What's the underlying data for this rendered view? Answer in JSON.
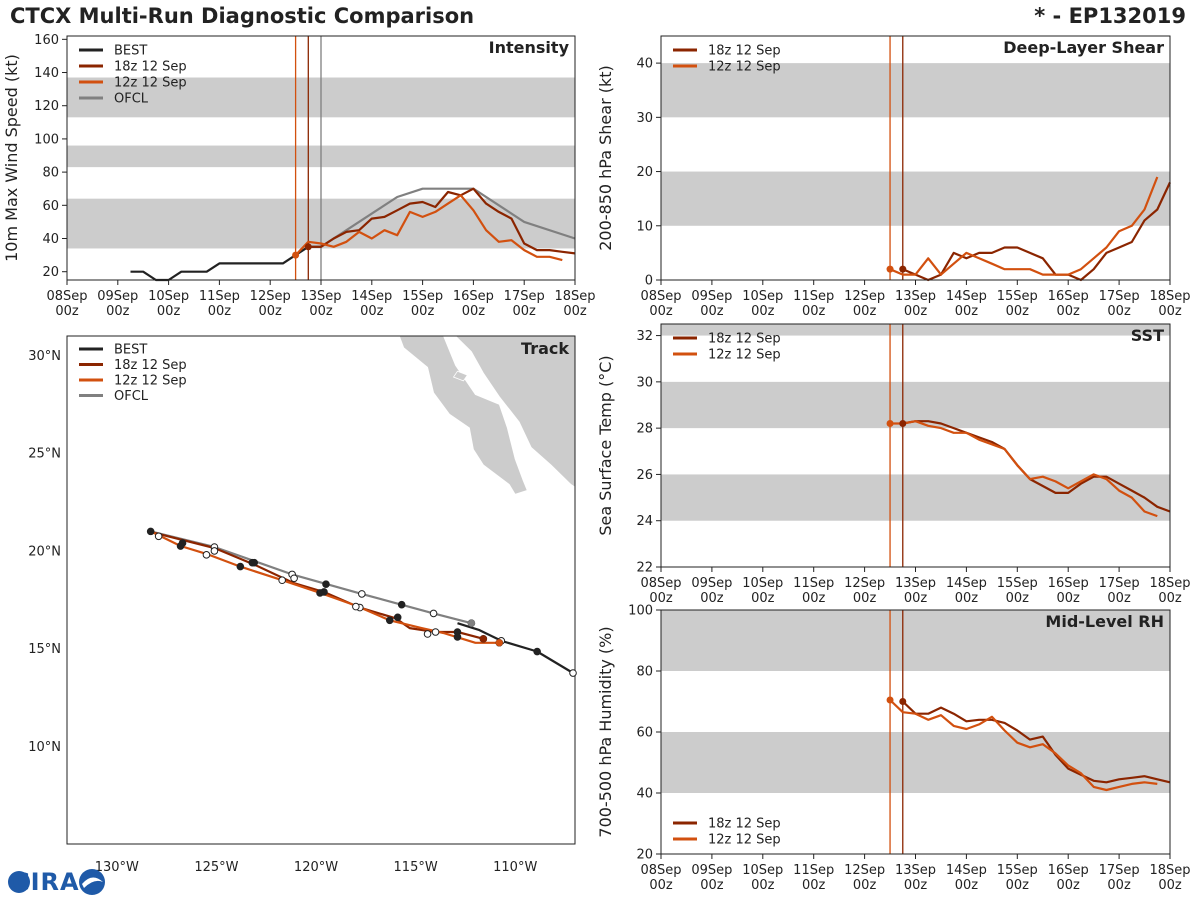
{
  "figure_title": "CTCX Multi-Run Diagnostic Comparison",
  "storm_id": "* - EP132019",
  "colors": {
    "BEST": "#222222",
    "18z 12 Sep": "#8b2500",
    "12z 12 Sep": "#d2500f",
    "OFCL": "#808080",
    "band": "#cccccc"
  },
  "chart_data": [
    {
      "id": "intensity",
      "type": "line",
      "title": "Intensity",
      "ylabel": "10m Max Wind Speed (kt)",
      "x_unit": "days since 08Sep 00z",
      "xlim": [
        0,
        10
      ],
      "ylim": [
        15,
        162
      ],
      "yticks": [
        20,
        40,
        60,
        80,
        100,
        120,
        140,
        160
      ],
      "xticks": [
        {
          "d": 0,
          "label": "08Sep\n00z"
        },
        {
          "d": 1,
          "label": "09Sep\n00z"
        },
        {
          "d": 2,
          "label": "10Sep\n00z"
        },
        {
          "d": 3,
          "label": "11Sep\n00z"
        },
        {
          "d": 4,
          "label": "12Sep\n00z"
        },
        {
          "d": 5,
          "label": "13Sep\n00z"
        },
        {
          "d": 6,
          "label": "14Sep\n00z"
        },
        {
          "d": 7,
          "label": "15Sep\n00z"
        },
        {
          "d": 8,
          "label": "16Sep\n00z"
        },
        {
          "d": 9,
          "label": "17Sep\n00z"
        },
        {
          "d": 10,
          "label": "18Sep\n00z"
        }
      ],
      "bands": [
        [
          34,
          64
        ],
        [
          83,
          96
        ],
        [
          113,
          137
        ]
      ],
      "vlines": [
        {
          "x": 4.5,
          "color": "#d2500f"
        },
        {
          "x": 4.75,
          "color": "#8b2500"
        },
        {
          "x": 5.0,
          "color": "#808080"
        }
      ],
      "legend": [
        "BEST",
        "18z 12 Sep",
        "12z 12 Sep",
        "OFCL"
      ],
      "series": [
        {
          "name": "BEST",
          "x": [
            1.25,
            1.5,
            1.75,
            2.0,
            2.25,
            2.5,
            2.75,
            3.0,
            3.25,
            3.5,
            3.75,
            4.0,
            4.25,
            4.5,
            4.75,
            5.0
          ],
          "y": [
            20,
            20,
            15,
            15,
            20,
            20,
            20,
            25,
            25,
            25,
            25,
            25,
            25,
            30,
            35,
            35
          ]
        },
        {
          "name": "OFCL",
          "x": [
            5.0,
            5.5,
            6.0,
            6.5,
            7.0,
            7.5,
            8.0,
            9.0,
            10.0
          ],
          "y": [
            35,
            45,
            55,
            65,
            70,
            70,
            70,
            50,
            40
          ]
        },
        {
          "name": "18z 12 Sep",
          "x": [
            4.75,
            5.0,
            5.25,
            5.5,
            5.75,
            6.0,
            6.25,
            6.5,
            6.75,
            7.0,
            7.25,
            7.5,
            7.75,
            8.0,
            8.25,
            8.5,
            8.75,
            9.0,
            9.25,
            9.5,
            9.75,
            10.0
          ],
          "y": [
            35,
            35,
            40,
            44,
            45,
            52,
            53,
            57,
            61,
            62,
            59,
            68,
            66,
            70,
            61,
            56,
            52,
            37,
            33,
            33,
            32,
            31
          ]
        },
        {
          "name": "12z 12 Sep",
          "x": [
            4.5,
            4.75,
            5.0,
            5.25,
            5.5,
            5.75,
            6.0,
            6.25,
            6.5,
            6.75,
            7.0,
            7.25,
            7.5,
            7.75,
            8.0,
            8.25,
            8.5,
            8.75,
            9.0,
            9.25,
            9.5,
            9.75
          ],
          "y": [
            30,
            38,
            37,
            35,
            38,
            44,
            40,
            45,
            42,
            56,
            53,
            56,
            61,
            66,
            57,
            45,
            38,
            39,
            33,
            29,
            29,
            27
          ]
        }
      ],
      "markers": [
        {
          "name": "12z 12 Sep",
          "x": 4.5,
          "y": 30
        },
        {
          "name": "18z 12 Sep",
          "x": 4.75,
          "y": 35
        }
      ]
    },
    {
      "id": "shear",
      "type": "line",
      "title": "Deep-Layer Shear",
      "ylabel": "200-850 hPa Shear (kt)",
      "xlim": [
        0,
        10
      ],
      "ylim": [
        0,
        45
      ],
      "yticks": [
        0,
        10,
        20,
        30,
        40
      ],
      "bands": [
        [
          10,
          20
        ],
        [
          30,
          40
        ]
      ],
      "vlines": [
        {
          "x": 4.5,
          "color": "#d2500f"
        },
        {
          "x": 4.75,
          "color": "#8b2500"
        }
      ],
      "legend": [
        "18z 12 Sep",
        "12z 12 Sep"
      ],
      "series": [
        {
          "name": "18z 12 Sep",
          "x": [
            4.75,
            5.0,
            5.25,
            5.5,
            5.75,
            6.0,
            6.25,
            6.5,
            6.75,
            7.0,
            7.25,
            7.5,
            7.75,
            8.0,
            8.25,
            8.5,
            8.75,
            9.0,
            9.25,
            9.5,
            9.75,
            10.0
          ],
          "y": [
            2,
            1,
            0,
            1,
            5,
            4,
            5,
            5,
            6,
            6,
            5,
            4,
            1,
            1,
            0,
            2,
            5,
            6,
            7,
            11,
            13,
            18
          ]
        },
        {
          "name": "12z 12 Sep",
          "x": [
            4.5,
            4.75,
            5.0,
            5.25,
            5.5,
            5.75,
            6.0,
            6.25,
            6.5,
            6.75,
            7.0,
            7.25,
            7.5,
            7.75,
            8.0,
            8.25,
            8.5,
            8.75,
            9.0,
            9.25,
            9.5,
            9.75
          ],
          "y": [
            2,
            1,
            1,
            4,
            1,
            3,
            5,
            4,
            3,
            2,
            2,
            2,
            1,
            1,
            1,
            2,
            4,
            6,
            9,
            10,
            13,
            19
          ]
        }
      ],
      "markers": [
        {
          "name": "12z 12 Sep",
          "x": 4.5,
          "y": 2
        },
        {
          "name": "18z 12 Sep",
          "x": 4.75,
          "y": 2
        }
      ]
    },
    {
      "id": "track",
      "type": "map",
      "title": "Track",
      "lon_range": [
        -132.5,
        -107
      ],
      "lat_range": [
        5,
        31
      ],
      "xticks": [
        {
          "v": -130,
          "label": "130°W"
        },
        {
          "v": -125,
          "label": "125°W"
        },
        {
          "v": -120,
          "label": "120°W"
        },
        {
          "v": -115,
          "label": "115°W"
        },
        {
          "v": -110,
          "label": "110°W"
        }
      ],
      "yticks": [
        {
          "v": 30,
          "label": "30°N"
        },
        {
          "v": 25,
          "label": "25°N"
        },
        {
          "v": 20,
          "label": "20°N"
        },
        {
          "v": 15,
          "label": "15°N"
        },
        {
          "v": 10,
          "label": "10°N"
        }
      ],
      "legend": [
        "BEST",
        "18z 12 Sep",
        "12z 12 Sep",
        "OFCL"
      ],
      "series": [
        {
          "name": "BEST",
          "lon": [
            -107.1,
            -108.9,
            -110.7,
            -111.8,
            -112.9
          ],
          "lat": [
            13.75,
            14.85,
            15.4,
            15.95,
            16.3
          ],
          "markers": [
            {
              "lon": -107.1,
              "lat": 13.75,
              "open": true
            },
            {
              "lon": -108.9,
              "lat": 14.85,
              "open": false
            },
            {
              "lon": -110.7,
              "lat": 15.4,
              "open": true
            }
          ]
        },
        {
          "name": "OFCL",
          "lon": [
            -112.2,
            -114.1,
            -117.7,
            -121.2,
            -125.1,
            -128.3
          ],
          "lat": [
            16.3,
            16.8,
            17.8,
            18.8,
            20.2,
            21.0
          ],
          "markers": [
            {
              "lon": -112.2,
              "lat": 16.3,
              "open": false
            },
            {
              "lon": -114.1,
              "lat": 16.8,
              "open": true
            },
            {
              "lon": -115.7,
              "lat": 17.25,
              "open": false
            },
            {
              "lon": -117.7,
              "lat": 17.8,
              "open": true
            },
            {
              "lon": -119.5,
              "lat": 18.3,
              "open": false
            },
            {
              "lon": -121.2,
              "lat": 18.8,
              "open": true
            },
            {
              "lon": -123.2,
              "lat": 19.4,
              "open": false
            },
            {
              "lon": -125.1,
              "lat": 20.2,
              "open": true
            },
            {
              "lon": -126.7,
              "lat": 20.4,
              "open": false
            },
            {
              "lon": -128.3,
              "lat": 21.0,
              "open": false
            }
          ]
        },
        {
          "name": "18z 12 Sep",
          "lon": [
            -111.6,
            -112.9,
            -114.0,
            -115.3,
            -116.0,
            -117.8,
            -119.6,
            -121.1,
            -123.1,
            -125.1,
            -128.2
          ],
          "lat": [
            15.5,
            15.85,
            15.85,
            16.05,
            16.55,
            17.1,
            17.9,
            18.35,
            19.3,
            20.15,
            20.95
          ],
          "markers": [
            {
              "lon": -111.6,
              "lat": 15.5,
              "open": false
            },
            {
              "lon": -112.9,
              "lat": 15.85,
              "open": false
            },
            {
              "lon": -114.0,
              "lat": 15.85,
              "open": true
            },
            {
              "lon": -115.9,
              "lat": 16.6,
              "open": false
            },
            {
              "lon": -117.8,
              "lat": 17.1,
              "open": true
            },
            {
              "lon": -119.6,
              "lat": 17.9,
              "open": false
            },
            {
              "lon": -121.1,
              "lat": 18.6,
              "open": true
            },
            {
              "lon": -123.1,
              "lat": 19.4,
              "open": false
            },
            {
              "lon": -125.1,
              "lat": 20.0,
              "open": true
            },
            {
              "lon": -127.9,
              "lat": 20.75,
              "open": true
            }
          ]
        },
        {
          "name": "12z 12 Sep",
          "lon": [
            -110.8,
            -112.0,
            -113.6,
            -114.7,
            -116.3,
            -118.0,
            -119.8,
            -121.7,
            -123.8,
            -125.5,
            -126.8,
            -128.3
          ],
          "lat": [
            15.3,
            15.3,
            15.8,
            16.05,
            16.45,
            17.2,
            17.85,
            18.5,
            19.2,
            19.85,
            20.25,
            21.0
          ],
          "markers": [
            {
              "lon": -110.8,
              "lat": 15.3,
              "open": false
            },
            {
              "lon": -112.9,
              "lat": 15.6,
              "open": false
            },
            {
              "lon": -114.4,
              "lat": 15.75,
              "open": true
            },
            {
              "lon": -116.3,
              "lat": 16.45,
              "open": false
            },
            {
              "lon": -118.0,
              "lat": 17.15,
              "open": true
            },
            {
              "lon": -119.8,
              "lat": 17.85,
              "open": false
            },
            {
              "lon": -121.7,
              "lat": 18.5,
              "open": true
            },
            {
              "lon": -123.8,
              "lat": 19.2,
              "open": false
            },
            {
              "lon": -125.5,
              "lat": 19.8,
              "open": true
            },
            {
              "lon": -126.8,
              "lat": 20.25,
              "open": false
            }
          ]
        }
      ]
    },
    {
      "id": "sst",
      "type": "line",
      "title": "SST",
      "ylabel": "Sea Surface Temp (°C)",
      "xlim": [
        0,
        10
      ],
      "ylim": [
        22,
        32.5
      ],
      "yticks": [
        22,
        24,
        26,
        28,
        30,
        32
      ],
      "bands": [
        [
          24,
          26
        ],
        [
          28,
          30
        ],
        [
          32,
          32.5
        ]
      ],
      "vlines": [
        {
          "x": 4.5,
          "color": "#d2500f"
        },
        {
          "x": 4.75,
          "color": "#8b2500"
        }
      ],
      "legend": [
        "18z 12 Sep",
        "12z 12 Sep"
      ],
      "series": [
        {
          "name": "18z 12 Sep",
          "x": [
            4.75,
            5.0,
            5.25,
            5.5,
            5.75,
            6.0,
            6.25,
            6.5,
            6.75,
            7.0,
            7.25,
            7.5,
            7.75,
            8.0,
            8.25,
            8.5,
            8.75,
            9.0,
            9.25,
            9.5,
            9.75,
            10.0
          ],
          "y": [
            28.2,
            28.3,
            28.3,
            28.2,
            28.0,
            27.8,
            27.6,
            27.4,
            27.1,
            26.4,
            25.8,
            25.5,
            25.2,
            25.2,
            25.6,
            25.9,
            25.9,
            25.6,
            25.3,
            25.0,
            24.6,
            24.4
          ]
        },
        {
          "name": "12z 12 Sep",
          "x": [
            4.5,
            4.75,
            5.0,
            5.25,
            5.5,
            5.75,
            6.0,
            6.25,
            6.5,
            6.75,
            7.0,
            7.25,
            7.5,
            7.75,
            8.0,
            8.25,
            8.5,
            8.75,
            9.0,
            9.25,
            9.5,
            9.75
          ],
          "y": [
            28.2,
            28.2,
            28.3,
            28.1,
            28.0,
            27.8,
            27.8,
            27.5,
            27.3,
            27.1,
            26.4,
            25.8,
            25.9,
            25.7,
            25.4,
            25.7,
            26.0,
            25.8,
            25.3,
            25.0,
            24.4,
            24.2
          ]
        }
      ],
      "markers": [
        {
          "name": "12z 12 Sep",
          "x": 4.5,
          "y": 28.2
        },
        {
          "name": "18z 12 Sep",
          "x": 4.75,
          "y": 28.2
        }
      ]
    },
    {
      "id": "rh",
      "type": "line",
      "title": "Mid-Level RH",
      "ylabel": "700-500 hPa Humidity (%)",
      "xlim": [
        0,
        10
      ],
      "ylim": [
        20,
        100
      ],
      "yticks": [
        20,
        40,
        60,
        80,
        100
      ],
      "bands": [
        [
          40,
          60
        ],
        [
          80,
          100
        ]
      ],
      "vlines": [
        {
          "x": 4.5,
          "color": "#d2500f"
        },
        {
          "x": 4.75,
          "color": "#8b2500"
        }
      ],
      "legend": [
        "18z 12 Sep",
        "12z 12 Sep"
      ],
      "series": [
        {
          "name": "18z 12 Sep",
          "x": [
            4.75,
            5.0,
            5.25,
            5.5,
            5.75,
            6.0,
            6.25,
            6.5,
            6.75,
            7.0,
            7.25,
            7.5,
            7.75,
            8.0,
            8.25,
            8.5,
            8.75,
            9.0,
            9.25,
            9.5,
            9.75,
            10.0
          ],
          "y": [
            70,
            66,
            66,
            68,
            66,
            63.5,
            64,
            64,
            63,
            60.5,
            57.5,
            58.5,
            52.5,
            48,
            46,
            44,
            43.5,
            44.5,
            45,
            45.5,
            44.5,
            43.5
          ]
        },
        {
          "name": "12z 12 Sep",
          "x": [
            4.5,
            4.75,
            5.0,
            5.25,
            5.5,
            5.75,
            6.0,
            6.25,
            6.5,
            6.75,
            7.0,
            7.25,
            7.5,
            7.75,
            8.0,
            8.25,
            8.5,
            8.75,
            9.0,
            9.25,
            9.5,
            9.75
          ],
          "y": [
            70.5,
            66.5,
            66,
            64,
            65.5,
            62,
            61,
            62.5,
            65,
            60.5,
            56.5,
            55,
            56,
            53,
            49,
            46.5,
            42,
            41,
            42,
            43,
            43.5,
            43
          ]
        }
      ],
      "markers": [
        {
          "name": "12z 12 Sep",
          "x": 4.5,
          "y": 70.5
        },
        {
          "name": "18z 12 Sep",
          "x": 4.75,
          "y": 70
        }
      ]
    }
  ],
  "logo": {
    "text": "CIRA"
  }
}
